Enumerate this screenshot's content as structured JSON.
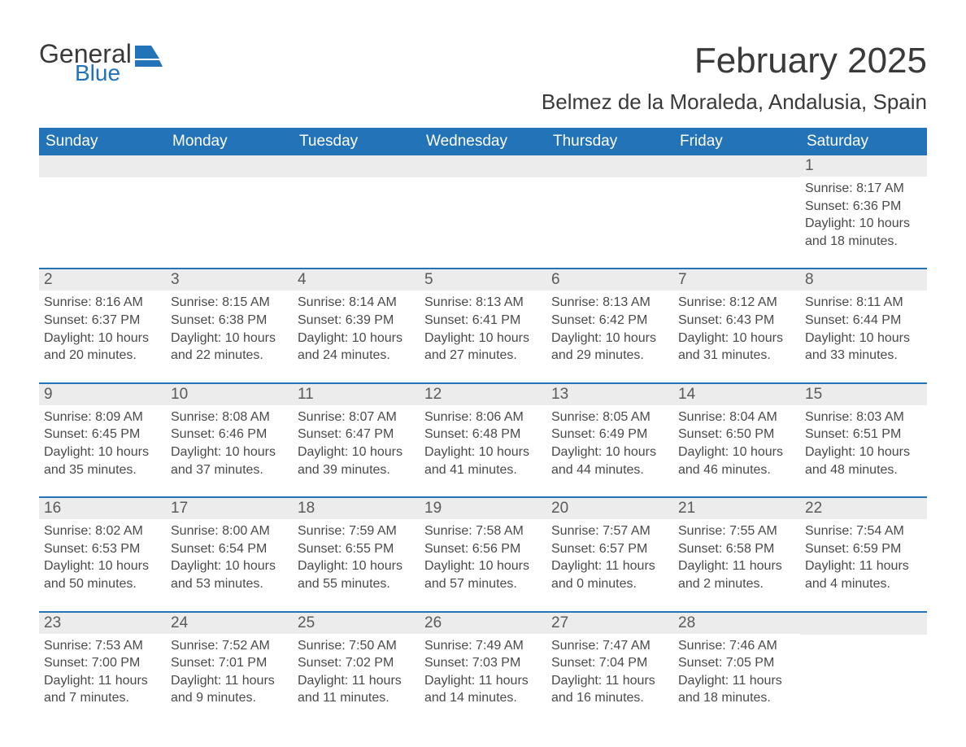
{
  "logo": {
    "general": "General",
    "blue": "Blue",
    "icon_fill": "#2273b8"
  },
  "title": "February 2025",
  "location": "Belmez de la Moraleda, Andalusia, Spain",
  "colors": {
    "header_bg": "#2273b8",
    "header_text": "#ffffff",
    "daynum_bg": "#ececec",
    "body_text": "#4a4a4a",
    "title_text": "#3a3a3a",
    "page_bg": "#ffffff"
  },
  "day_names": [
    "Sunday",
    "Monday",
    "Tuesday",
    "Wednesday",
    "Thursday",
    "Friday",
    "Saturday"
  ],
  "weeks": [
    [
      {
        "n": "",
        "sunrise": "",
        "sunset": "",
        "daylight": ""
      },
      {
        "n": "",
        "sunrise": "",
        "sunset": "",
        "daylight": ""
      },
      {
        "n": "",
        "sunrise": "",
        "sunset": "",
        "daylight": ""
      },
      {
        "n": "",
        "sunrise": "",
        "sunset": "",
        "daylight": ""
      },
      {
        "n": "",
        "sunrise": "",
        "sunset": "",
        "daylight": ""
      },
      {
        "n": "",
        "sunrise": "",
        "sunset": "",
        "daylight": ""
      },
      {
        "n": "1",
        "sunrise": "Sunrise: 8:17 AM",
        "sunset": "Sunset: 6:36 PM",
        "daylight": "Daylight: 10 hours and 18 minutes."
      }
    ],
    [
      {
        "n": "2",
        "sunrise": "Sunrise: 8:16 AM",
        "sunset": "Sunset: 6:37 PM",
        "daylight": "Daylight: 10 hours and 20 minutes."
      },
      {
        "n": "3",
        "sunrise": "Sunrise: 8:15 AM",
        "sunset": "Sunset: 6:38 PM",
        "daylight": "Daylight: 10 hours and 22 minutes."
      },
      {
        "n": "4",
        "sunrise": "Sunrise: 8:14 AM",
        "sunset": "Sunset: 6:39 PM",
        "daylight": "Daylight: 10 hours and 24 minutes."
      },
      {
        "n": "5",
        "sunrise": "Sunrise: 8:13 AM",
        "sunset": "Sunset: 6:41 PM",
        "daylight": "Daylight: 10 hours and 27 minutes."
      },
      {
        "n": "6",
        "sunrise": "Sunrise: 8:13 AM",
        "sunset": "Sunset: 6:42 PM",
        "daylight": "Daylight: 10 hours and 29 minutes."
      },
      {
        "n": "7",
        "sunrise": "Sunrise: 8:12 AM",
        "sunset": "Sunset: 6:43 PM",
        "daylight": "Daylight: 10 hours and 31 minutes."
      },
      {
        "n": "8",
        "sunrise": "Sunrise: 8:11 AM",
        "sunset": "Sunset: 6:44 PM",
        "daylight": "Daylight: 10 hours and 33 minutes."
      }
    ],
    [
      {
        "n": "9",
        "sunrise": "Sunrise: 8:09 AM",
        "sunset": "Sunset: 6:45 PM",
        "daylight": "Daylight: 10 hours and 35 minutes."
      },
      {
        "n": "10",
        "sunrise": "Sunrise: 8:08 AM",
        "sunset": "Sunset: 6:46 PM",
        "daylight": "Daylight: 10 hours and 37 minutes."
      },
      {
        "n": "11",
        "sunrise": "Sunrise: 8:07 AM",
        "sunset": "Sunset: 6:47 PM",
        "daylight": "Daylight: 10 hours and 39 minutes."
      },
      {
        "n": "12",
        "sunrise": "Sunrise: 8:06 AM",
        "sunset": "Sunset: 6:48 PM",
        "daylight": "Daylight: 10 hours and 41 minutes."
      },
      {
        "n": "13",
        "sunrise": "Sunrise: 8:05 AM",
        "sunset": "Sunset: 6:49 PM",
        "daylight": "Daylight: 10 hours and 44 minutes."
      },
      {
        "n": "14",
        "sunrise": "Sunrise: 8:04 AM",
        "sunset": "Sunset: 6:50 PM",
        "daylight": "Daylight: 10 hours and 46 minutes."
      },
      {
        "n": "15",
        "sunrise": "Sunrise: 8:03 AM",
        "sunset": "Sunset: 6:51 PM",
        "daylight": "Daylight: 10 hours and 48 minutes."
      }
    ],
    [
      {
        "n": "16",
        "sunrise": "Sunrise: 8:02 AM",
        "sunset": "Sunset: 6:53 PM",
        "daylight": "Daylight: 10 hours and 50 minutes."
      },
      {
        "n": "17",
        "sunrise": "Sunrise: 8:00 AM",
        "sunset": "Sunset: 6:54 PM",
        "daylight": "Daylight: 10 hours and 53 minutes."
      },
      {
        "n": "18",
        "sunrise": "Sunrise: 7:59 AM",
        "sunset": "Sunset: 6:55 PM",
        "daylight": "Daylight: 10 hours and 55 minutes."
      },
      {
        "n": "19",
        "sunrise": "Sunrise: 7:58 AM",
        "sunset": "Sunset: 6:56 PM",
        "daylight": "Daylight: 10 hours and 57 minutes."
      },
      {
        "n": "20",
        "sunrise": "Sunrise: 7:57 AM",
        "sunset": "Sunset: 6:57 PM",
        "daylight": "Daylight: 11 hours and 0 minutes."
      },
      {
        "n": "21",
        "sunrise": "Sunrise: 7:55 AM",
        "sunset": "Sunset: 6:58 PM",
        "daylight": "Daylight: 11 hours and 2 minutes."
      },
      {
        "n": "22",
        "sunrise": "Sunrise: 7:54 AM",
        "sunset": "Sunset: 6:59 PM",
        "daylight": "Daylight: 11 hours and 4 minutes."
      }
    ],
    [
      {
        "n": "23",
        "sunrise": "Sunrise: 7:53 AM",
        "sunset": "Sunset: 7:00 PM",
        "daylight": "Daylight: 11 hours and 7 minutes."
      },
      {
        "n": "24",
        "sunrise": "Sunrise: 7:52 AM",
        "sunset": "Sunset: 7:01 PM",
        "daylight": "Daylight: 11 hours and 9 minutes."
      },
      {
        "n": "25",
        "sunrise": "Sunrise: 7:50 AM",
        "sunset": "Sunset: 7:02 PM",
        "daylight": "Daylight: 11 hours and 11 minutes."
      },
      {
        "n": "26",
        "sunrise": "Sunrise: 7:49 AM",
        "sunset": "Sunset: 7:03 PM",
        "daylight": "Daylight: 11 hours and 14 minutes."
      },
      {
        "n": "27",
        "sunrise": "Sunrise: 7:47 AM",
        "sunset": "Sunset: 7:04 PM",
        "daylight": "Daylight: 11 hours and 16 minutes."
      },
      {
        "n": "28",
        "sunrise": "Sunrise: 7:46 AM",
        "sunset": "Sunset: 7:05 PM",
        "daylight": "Daylight: 11 hours and 18 minutes."
      },
      {
        "n": "",
        "sunrise": "",
        "sunset": "",
        "daylight": ""
      }
    ]
  ]
}
